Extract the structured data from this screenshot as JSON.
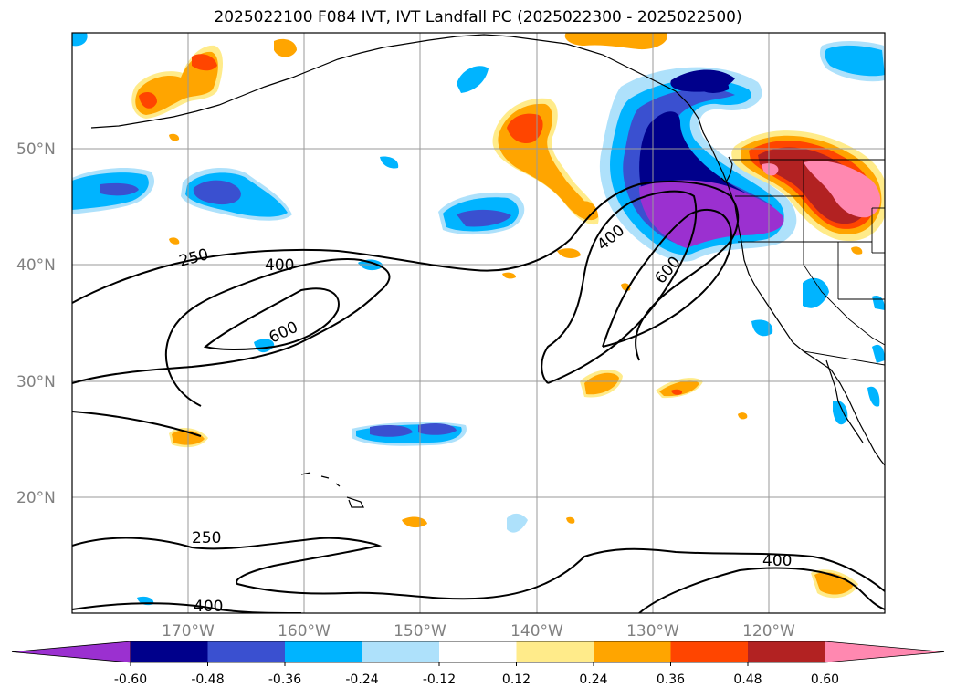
{
  "title": "2025022100 F084 IVT, IVT Landfall PC (2025022300 - 2025022500)",
  "map": {
    "lat_labels": [
      "50°N",
      "40°N",
      "30°N",
      "20°N"
    ],
    "lon_labels": [
      "170°W",
      "160°W",
      "150°W",
      "140°W",
      "130°W",
      "120°W"
    ],
    "contour_labels": [
      "250",
      "400",
      "600",
      "400",
      "600",
      "250",
      "400",
      "400"
    ]
  },
  "colorbar": {
    "colors": [
      "#9b30d0",
      "#00008b",
      "#3a50d0",
      "#00b4ff",
      "#aee1fb",
      "#ffffff",
      "#ffeb8a",
      "#ffa500",
      "#ff4500",
      "#b22222",
      "#ff88b0"
    ],
    "ticks": [
      "-0.60",
      "-0.48",
      "-0.36",
      "-0.24",
      "-0.12",
      "0.12",
      "0.24",
      "0.36",
      "0.48",
      "0.60"
    ]
  }
}
